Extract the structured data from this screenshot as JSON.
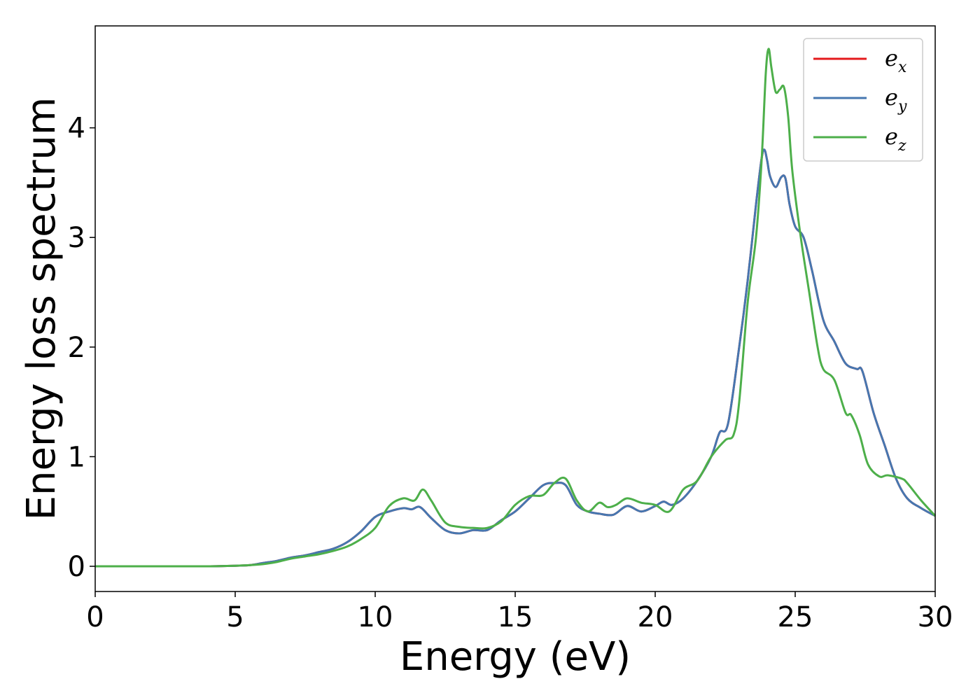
{
  "chart_data": {
    "type": "line",
    "title": "",
    "xlabel": "Energy (eV)",
    "ylabel": "Energy loss spectrum",
    "xlim": [
      0,
      30
    ],
    "ylim": [
      -0.23,
      4.93
    ],
    "xticks": [
      0,
      5,
      10,
      15,
      20,
      25,
      30
    ],
    "yticks": [
      0,
      1,
      2,
      3,
      4
    ],
    "grid": false,
    "legend_position": "top-right",
    "series": [
      {
        "name": "e",
        "sub": "x",
        "color": "#e41a1c",
        "x": [
          0,
          1,
          2,
          3,
          4,
          5,
          5.5,
          6,
          6.5,
          7,
          7.5,
          8,
          8.5,
          9,
          9.5,
          10,
          10.5,
          11,
          11.3,
          11.6,
          12,
          12.5,
          13,
          13.5,
          14,
          14.5,
          15,
          15.5,
          16,
          16.4,
          16.8,
          17.2,
          17.6,
          18,
          18.5,
          19,
          19.5,
          20,
          20.3,
          20.6,
          21,
          21.5,
          22,
          22.3,
          22.6,
          23,
          23.3,
          23.6,
          23.8,
          23.9,
          24,
          24.1,
          24.3,
          24.5,
          24.65,
          24.8,
          25,
          25.3,
          25.6,
          26,
          26.4,
          26.8,
          27.2,
          27.4,
          27.8,
          28.2,
          28.6,
          29,
          29.5,
          30
        ],
        "y": [
          0,
          0,
          0,
          0,
          0,
          0.005,
          0.01,
          0.03,
          0.05,
          0.08,
          0.1,
          0.13,
          0.16,
          0.22,
          0.32,
          0.45,
          0.5,
          0.53,
          0.52,
          0.54,
          0.44,
          0.33,
          0.3,
          0.33,
          0.33,
          0.42,
          0.5,
          0.62,
          0.74,
          0.76,
          0.74,
          0.56,
          0.5,
          0.48,
          0.47,
          0.55,
          0.5,
          0.55,
          0.59,
          0.56,
          0.62,
          0.78,
          1.0,
          1.22,
          1.3,
          2.0,
          2.6,
          3.3,
          3.72,
          3.8,
          3.7,
          3.56,
          3.46,
          3.55,
          3.54,
          3.3,
          3.1,
          3.0,
          2.7,
          2.25,
          2.05,
          1.85,
          1.8,
          1.78,
          1.4,
          1.1,
          0.8,
          0.62,
          0.53,
          0.46
        ]
      },
      {
        "name": "e",
        "sub": "y",
        "color": "#4677b0",
        "x": [
          0,
          1,
          2,
          3,
          4,
          5,
          5.5,
          6,
          6.5,
          7,
          7.5,
          8,
          8.5,
          9,
          9.5,
          10,
          10.5,
          11,
          11.3,
          11.6,
          12,
          12.5,
          13,
          13.5,
          14,
          14.5,
          15,
          15.5,
          16,
          16.4,
          16.8,
          17.2,
          17.6,
          18,
          18.5,
          19,
          19.5,
          20,
          20.3,
          20.6,
          21,
          21.5,
          22,
          22.3,
          22.6,
          23,
          23.3,
          23.6,
          23.8,
          23.9,
          24,
          24.1,
          24.3,
          24.5,
          24.65,
          24.8,
          25,
          25.3,
          25.6,
          26,
          26.4,
          26.8,
          27.2,
          27.4,
          27.8,
          28.2,
          28.6,
          29,
          29.5,
          30
        ],
        "y": [
          0,
          0,
          0,
          0,
          0,
          0.005,
          0.01,
          0.03,
          0.05,
          0.08,
          0.1,
          0.13,
          0.16,
          0.22,
          0.32,
          0.45,
          0.5,
          0.53,
          0.52,
          0.54,
          0.44,
          0.33,
          0.3,
          0.33,
          0.33,
          0.42,
          0.5,
          0.62,
          0.74,
          0.76,
          0.74,
          0.56,
          0.5,
          0.48,
          0.47,
          0.55,
          0.5,
          0.55,
          0.59,
          0.56,
          0.62,
          0.78,
          1.0,
          1.22,
          1.3,
          2.0,
          2.6,
          3.3,
          3.72,
          3.8,
          3.7,
          3.56,
          3.46,
          3.55,
          3.54,
          3.3,
          3.1,
          3.0,
          2.7,
          2.25,
          2.05,
          1.85,
          1.8,
          1.78,
          1.4,
          1.1,
          0.8,
          0.62,
          0.53,
          0.46
        ]
      },
      {
        "name": "e",
        "sub": "z",
        "color": "#4daf4a",
        "x": [
          0,
          1,
          2,
          3,
          4,
          5,
          5.5,
          6,
          6.5,
          7,
          7.5,
          8,
          8.5,
          9,
          9.5,
          10,
          10.5,
          11,
          11.4,
          11.7,
          12,
          12.5,
          13,
          13.5,
          14,
          14.5,
          15,
          15.5,
          16,
          16.4,
          16.8,
          17.2,
          17.6,
          18,
          18.3,
          18.6,
          19,
          19.5,
          20,
          20.5,
          21,
          21.5,
          22,
          22.5,
          22.8,
          23,
          23.3,
          23.6,
          23.8,
          23.95,
          24.05,
          24.15,
          24.3,
          24.45,
          24.6,
          24.75,
          24.9,
          25.2,
          25.5,
          25.8,
          26,
          26.4,
          26.8,
          27,
          27.3,
          27.6,
          28,
          28.3,
          28.8,
          29,
          29.5,
          30
        ],
        "y": [
          0,
          0,
          0,
          0,
          0,
          0.005,
          0.01,
          0.02,
          0.04,
          0.07,
          0.09,
          0.11,
          0.14,
          0.18,
          0.25,
          0.35,
          0.55,
          0.62,
          0.6,
          0.7,
          0.6,
          0.4,
          0.36,
          0.35,
          0.35,
          0.41,
          0.56,
          0.64,
          0.65,
          0.76,
          0.8,
          0.6,
          0.5,
          0.58,
          0.54,
          0.56,
          0.62,
          0.58,
          0.56,
          0.5,
          0.7,
          0.78,
          1.0,
          1.15,
          1.2,
          1.5,
          2.4,
          3.0,
          3.7,
          4.5,
          4.72,
          4.55,
          4.33,
          4.35,
          4.37,
          4.1,
          3.6,
          3.0,
          2.5,
          2.0,
          1.8,
          1.7,
          1.4,
          1.38,
          1.2,
          0.93,
          0.82,
          0.83,
          0.8,
          0.76,
          0.6,
          0.46
        ]
      }
    ]
  }
}
